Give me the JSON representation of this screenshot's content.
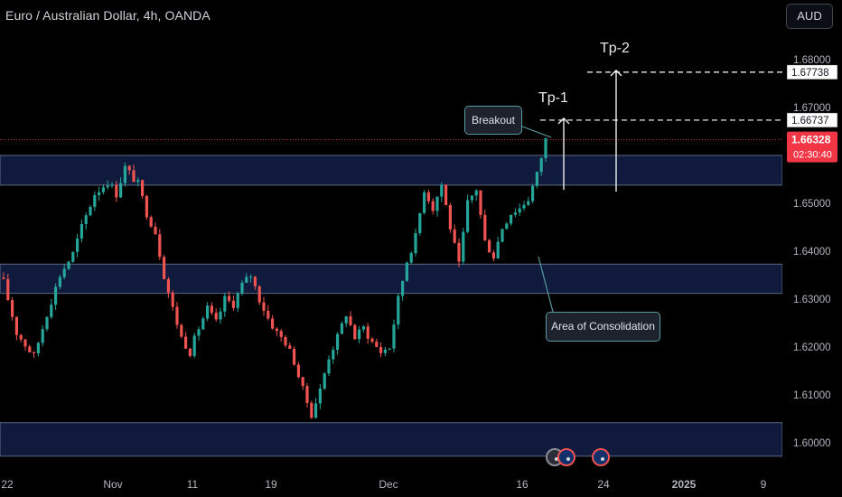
{
  "header": {
    "symbol_title": "Euro / Australian Dollar, 4h, OANDA",
    "currency_button": "AUD"
  },
  "annotations": {
    "breakout": "Breakout",
    "consolidation": "Area of Consolidation",
    "tp1": "Tp-1",
    "tp2": "Tp-2"
  },
  "colors": {
    "background": "#000000",
    "bull": "#26a69a",
    "bear": "#ef5350",
    "zone_fill": "#0f1a3c",
    "zone_border": "#5d6a80",
    "price_tag": "#f23645"
  },
  "chart_data": {
    "type": "candlestick",
    "symbol": "EURAUD",
    "timeframe": "4h",
    "source": "OANDA",
    "price_axis": {
      "ylim": [
        1.5955,
        1.6895
      ],
      "ticks": [
        "1.60000",
        "1.61000",
        "1.62000",
        "1.63000",
        "1.64000",
        "1.65000",
        "1.66000",
        "1.67000",
        "1.68000"
      ]
    },
    "time_axis": {
      "ticks": [
        "22",
        "Nov",
        "11",
        "19",
        "Dec",
        "16",
        "24",
        "2025",
        "9"
      ]
    },
    "current_price": {
      "value": "1.66328",
      "countdown": "02:30:40"
    },
    "targets": [
      {
        "name": "Tp-1",
        "value": "1.66737"
      },
      {
        "name": "Tp-2",
        "value": "1.67738"
      }
    ],
    "zones": [
      {
        "top": 1.66,
        "bottom": 1.6538
      },
      {
        "top": 1.6373,
        "bottom": 1.6312
      },
      {
        "top": 1.6042,
        "bottom": 1.5972
      }
    ],
    "path_anchors": [
      [
        0,
        1.6335
      ],
      [
        3,
        1.623
      ],
      [
        7,
        1.618
      ],
      [
        10,
        1.627
      ],
      [
        13,
        1.635
      ],
      [
        16,
        1.6395
      ],
      [
        18,
        1.645
      ],
      [
        21,
        1.652
      ],
      [
        24,
        1.6545
      ],
      [
        26,
        1.652
      ],
      [
        28,
        1.6575
      ],
      [
        31,
        1.654
      ],
      [
        33,
        1.648
      ],
      [
        35,
        1.644
      ],
      [
        37,
        1.635
      ],
      [
        39,
        1.628
      ],
      [
        41,
        1.622
      ],
      [
        43,
        1.619
      ],
      [
        45,
        1.624
      ],
      [
        47,
        1.628
      ],
      [
        49,
        1.625
      ],
      [
        51,
        1.63
      ],
      [
        53,
        1.629
      ],
      [
        55,
        1.633
      ],
      [
        57,
        1.635
      ],
      [
        59,
        1.63
      ],
      [
        61,
        1.626
      ],
      [
        63,
        1.623
      ],
      [
        65,
        1.621
      ],
      [
        67,
        1.617
      ],
      [
        69,
        1.611
      ],
      [
        71,
        1.606
      ],
      [
        73,
        1.611
      ],
      [
        75,
        1.618
      ],
      [
        77,
        1.622
      ],
      [
        79,
        1.627
      ],
      [
        81,
        1.622
      ],
      [
        83,
        1.624
      ],
      [
        85,
        1.621
      ],
      [
        87,
        1.619
      ],
      [
        89,
        1.62
      ],
      [
        91,
        1.63
      ],
      [
        93,
        1.638
      ],
      [
        95,
        1.643
      ],
      [
        97,
        1.653
      ],
      [
        99,
        1.649
      ],
      [
        101,
        1.654
      ],
      [
        103,
        1.645
      ],
      [
        105,
        1.637
      ],
      [
        107,
        1.65
      ],
      [
        109,
        1.653
      ],
      [
        111,
        1.642
      ],
      [
        113,
        1.639
      ],
      [
        115,
        1.645
      ],
      [
        117,
        1.648
      ],
      [
        119,
        1.649
      ],
      [
        121,
        1.651
      ],
      [
        123,
        1.656
      ],
      [
        125,
        1.6633
      ]
    ]
  }
}
